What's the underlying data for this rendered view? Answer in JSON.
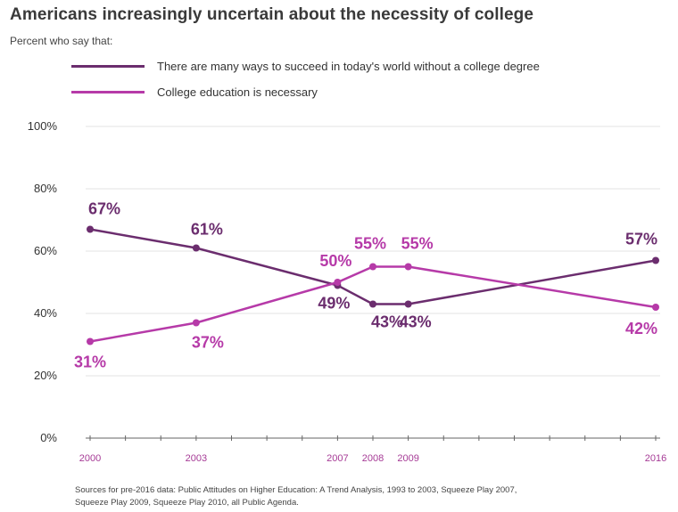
{
  "chart_data": {
    "type": "line",
    "title": "Americans increasingly uncertain about the necessity of college",
    "subtitle": "Percent who say that:",
    "x": [
      2000,
      2003,
      2007,
      2008,
      2009,
      2016
    ],
    "x_tick_labels": [
      "2000",
      "2003",
      "2007",
      "2008",
      "2009",
      "2016"
    ],
    "xlim": [
      2000,
      2016
    ],
    "ylim": [
      0,
      100
    ],
    "y_ticks": [
      0,
      20,
      40,
      60,
      80,
      100
    ],
    "y_tick_labels": [
      "0%",
      "20%",
      "40%",
      "60%",
      "80%",
      "100%"
    ],
    "grid": true,
    "legend_position": "top",
    "series": [
      {
        "name": "There are many ways to succeed in today's world without a college degree",
        "color": "#6b2d6e",
        "values": [
          67,
          61,
          49,
          43,
          43,
          57
        ],
        "data_labels": [
          "67%",
          "61%",
          "49%",
          "43%",
          "43%",
          "57%"
        ]
      },
      {
        "name": "College education is necessary",
        "color": "#b63aa8",
        "values": [
          31,
          37,
          50,
          55,
          55,
          42
        ],
        "data_labels": [
          "31%",
          "37%",
          "50%",
          "55%",
          "55%",
          "42%"
        ]
      }
    ],
    "source_lines": [
      "Sources for pre-2016 data: Public Attitudes on Higher Education: A Trend Analysis, 1993 to 2003, Squeeze Play 2007,",
      "Squeeze Play 2009, Squeeze Play 2010, all Public Agenda."
    ]
  }
}
